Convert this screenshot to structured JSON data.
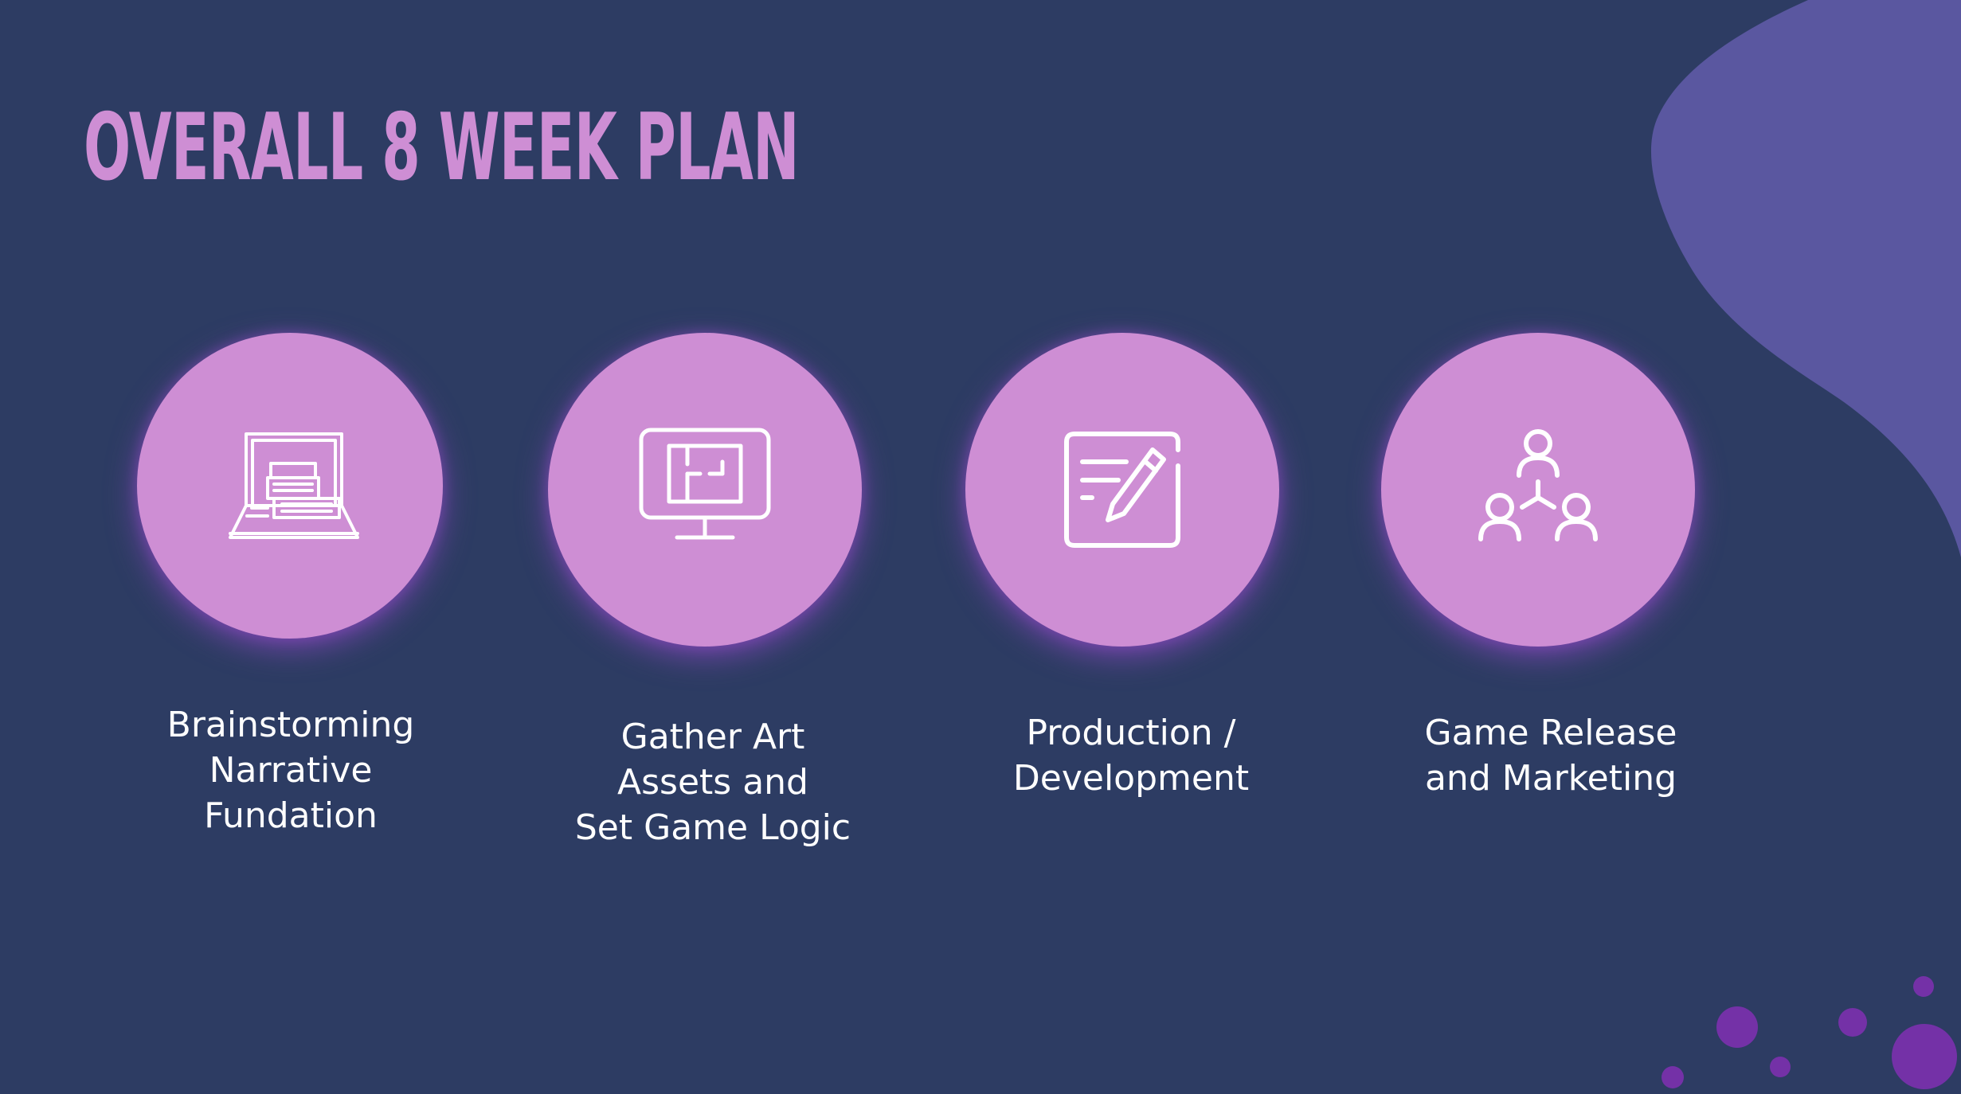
{
  "slide": {
    "title": "Overall 8 Week Plan",
    "colors": {
      "background": "#2d3c63",
      "accent": "#ce8ed4",
      "blob": "#5a57a0",
      "dots": "#7431a7"
    }
  },
  "steps": [
    {
      "label": "Brainstorming\nNarrative\nFundation",
      "icon": "laptop-typewriter-icon"
    },
    {
      "label": "Gather Art\nAssets and\nSet Game Logic",
      "icon": "monitor-floorplan-icon"
    },
    {
      "label": "Production /\nDevelopment",
      "icon": "document-edit-icon"
    },
    {
      "label": "Game Release\nand Marketing",
      "icon": "people-network-icon"
    }
  ]
}
